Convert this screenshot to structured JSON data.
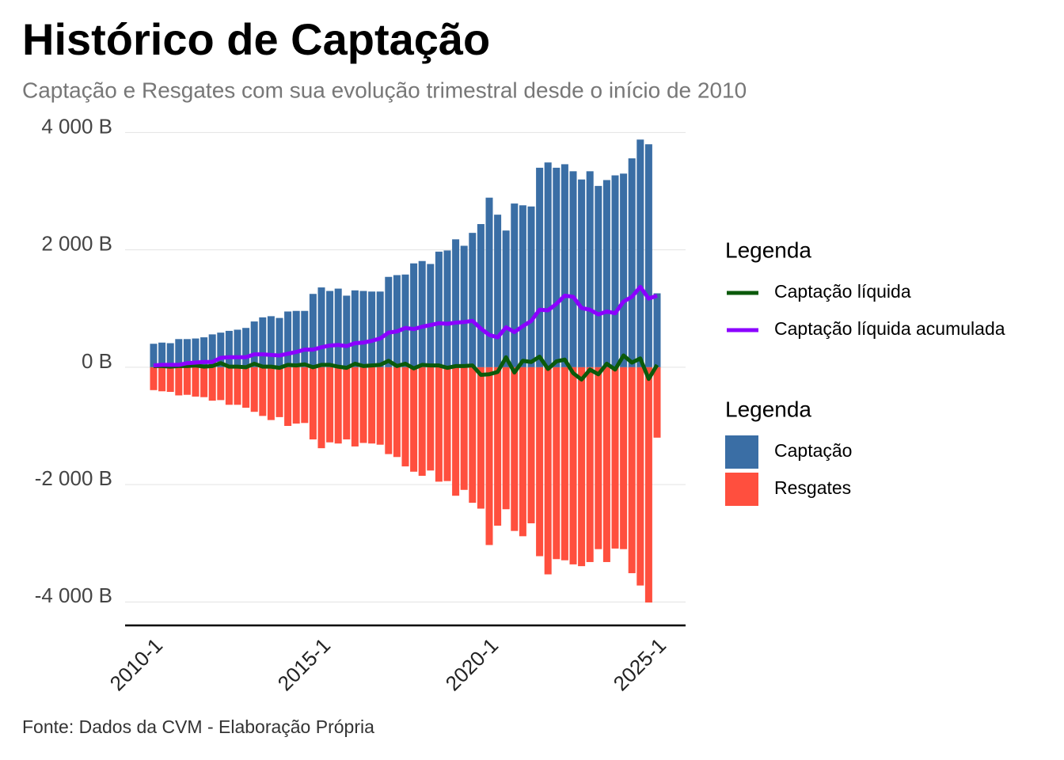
{
  "chart_data": {
    "type": "combo",
    "title": "Histórico de Captação",
    "subtitle": "Captação e Resgates com sua evolução trimestral desde o início de 2010",
    "caption": "Fonte: Dados da CVM - Elaboração Própria",
    "categories": [
      "2010-1",
      null,
      null,
      null,
      null,
      null,
      null,
      null,
      null,
      null,
      null,
      null,
      null,
      null,
      null,
      null,
      null,
      null,
      null,
      null,
      "2015-1",
      null,
      null,
      null,
      null,
      null,
      null,
      null,
      null,
      null,
      null,
      null,
      null,
      null,
      null,
      null,
      null,
      null,
      null,
      null,
      "2020-1",
      null,
      null,
      null,
      null,
      null,
      null,
      null,
      null,
      null,
      null,
      null,
      null,
      null,
      null,
      null,
      null,
      null,
      null,
      null,
      "2025-1"
    ],
    "ylim": [
      -4400,
      4100
    ],
    "yticks": [
      {
        "value": -4000,
        "label": "-4 000 B"
      },
      {
        "value": -2000,
        "label": "-2 000 B"
      },
      {
        "value": 0,
        "label": "0 B"
      },
      {
        "value": 2000,
        "label": "2 000 B"
      },
      {
        "value": 4000,
        "label": "4 000 B"
      }
    ],
    "grid": true,
    "legend_titles": [
      "Legenda",
      "Legenda"
    ],
    "series": [
      {
        "name": "Captação",
        "type": "bar",
        "color": "#3a6ea5",
        "values": [
          400,
          420,
          410,
          480,
          480,
          490,
          510,
          560,
          590,
          620,
          640,
          670,
          780,
          850,
          870,
          840,
          950,
          960,
          960,
          1250,
          1360,
          1300,
          1340,
          1220,
          1310,
          1300,
          1290,
          1290,
          1540,
          1570,
          1580,
          1770,
          1810,
          1760,
          1970,
          1990,
          2180,
          2070,
          2290,
          2440,
          2890,
          2600,
          2330,
          2790,
          2760,
          2740,
          3400,
          3490,
          3400,
          3460,
          3340,
          3200,
          3340,
          3090,
          3190,
          3270,
          3300,
          3560,
          3880,
          3800,
          1260
        ]
      },
      {
        "name": "Resgates",
        "type": "bar",
        "color": "#ff4f3e",
        "values": [
          -390,
          -410,
          -420,
          -480,
          -470,
          -500,
          -510,
          -570,
          -560,
          -640,
          -640,
          -690,
          -760,
          -830,
          -900,
          -850,
          -1000,
          -960,
          -950,
          -1230,
          -1380,
          -1280,
          -1300,
          -1230,
          -1350,
          -1290,
          -1300,
          -1320,
          -1480,
          -1530,
          -1690,
          -1780,
          -1850,
          -1760,
          -1950,
          -1940,
          -2190,
          -2090,
          -2310,
          -2410,
          -3030,
          -2700,
          -2420,
          -2790,
          -2880,
          -2660,
          -3220,
          -3530,
          -3270,
          -3290,
          -3360,
          -3390,
          -3320,
          -3100,
          -3320,
          -3090,
          -3100,
          -3510,
          -3720,
          -4010,
          -1200
        ]
      },
      {
        "name": "Captação líquida",
        "type": "line",
        "color": "#0b5a0b",
        "values": [
          20,
          20,
          10,
          20,
          20,
          30,
          10,
          20,
          70,
          10,
          10,
          0,
          60,
          10,
          10,
          -10,
          40,
          30,
          50,
          0,
          40,
          40,
          10,
          -10,
          60,
          20,
          30,
          40,
          110,
          20,
          60,
          -20,
          40,
          30,
          30,
          -10,
          20,
          20,
          30,
          -130,
          -120,
          -80,
          170,
          -90,
          110,
          90,
          180,
          -30,
          100,
          130,
          -100,
          -210,
          -40,
          -120,
          60,
          -40,
          200,
          80,
          150,
          -200,
          40
        ]
      },
      {
        "name": "Captação líquida acumulada",
        "type": "line",
        "color": "#8b00ff",
        "values": [
          30,
          40,
          40,
          40,
          70,
          80,
          90,
          90,
          160,
          170,
          170,
          170,
          220,
          220,
          210,
          200,
          230,
          260,
          300,
          300,
          340,
          370,
          380,
          360,
          410,
          420,
          450,
          490,
          590,
          610,
          670,
          650,
          690,
          720,
          750,
          740,
          760,
          770,
          790,
          660,
          550,
          510,
          680,
          600,
          700,
          790,
          980,
          970,
          1080,
          1220,
          1200,
          1010,
          980,
          900,
          950,
          920,
          1120,
          1200,
          1370,
          1170,
          1220
        ]
      }
    ]
  }
}
